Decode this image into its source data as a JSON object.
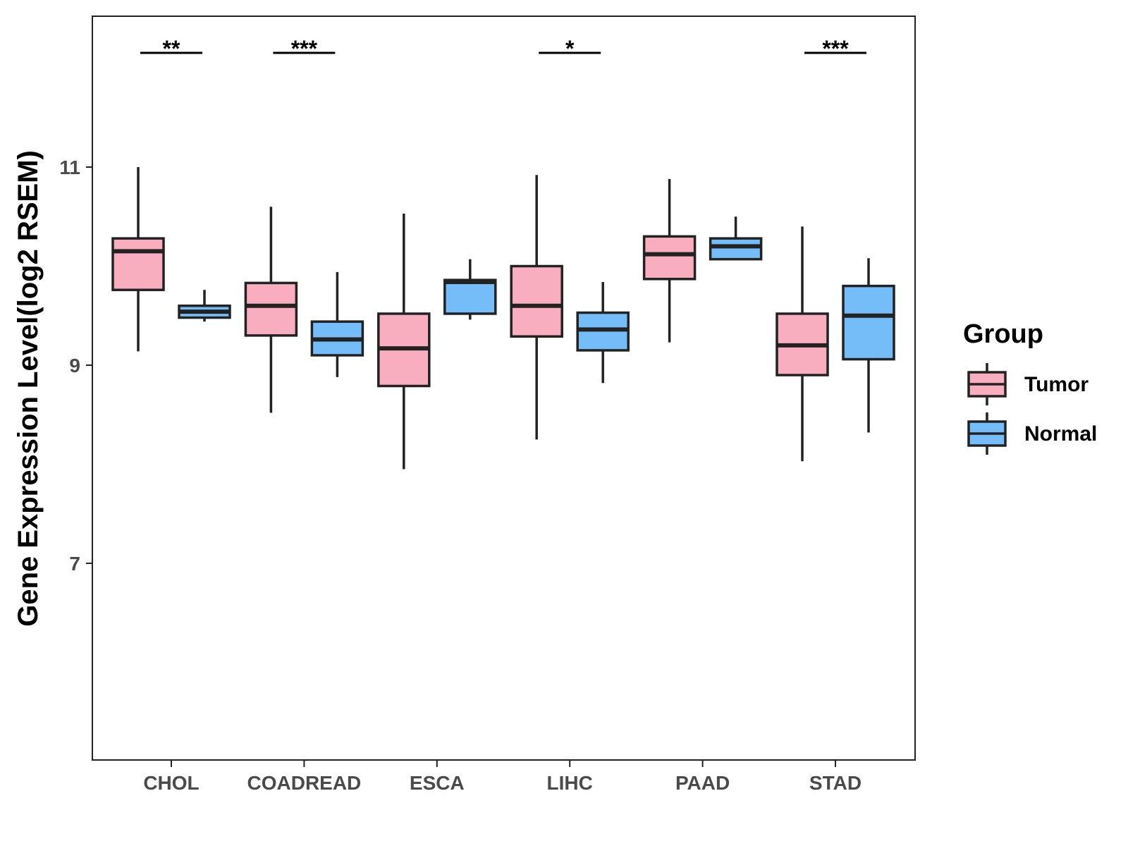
{
  "chart_data": {
    "type": "boxplot",
    "title": "",
    "xlabel": "",
    "ylabel": "Gene Expression Level(log2 RSEM)",
    "ylim": [
      5.1,
      12.6
    ],
    "yticks": [
      7,
      9,
      11
    ],
    "categories": [
      "CHOL",
      "COADREAD",
      "ESCA",
      "LIHC",
      "PAAD",
      "STAD"
    ],
    "legend": {
      "title": "Group",
      "position": "right",
      "entries": [
        "Tumor",
        "Normal"
      ]
    },
    "colors": {
      "Tumor": "#F9AEC0",
      "Normal": "#74BDF9",
      "outline": "#222222"
    },
    "series": [
      {
        "name": "Tumor",
        "boxes": [
          {
            "category": "CHOL",
            "min": 9.14,
            "q1": 9.76,
            "median": 10.15,
            "q3": 10.28,
            "max": 11.0
          },
          {
            "category": "COADREAD",
            "min": 8.52,
            "q1": 9.3,
            "median": 9.6,
            "q3": 9.83,
            "max": 10.6
          },
          {
            "category": "ESCA",
            "min": 7.95,
            "q1": 8.79,
            "median": 9.17,
            "q3": 9.52,
            "max": 10.53
          },
          {
            "category": "LIHC",
            "min": 8.25,
            "q1": 9.29,
            "median": 9.6,
            "q3": 10.0,
            "max": 10.92
          },
          {
            "category": "PAAD",
            "min": 9.23,
            "q1": 9.87,
            "median": 10.12,
            "q3": 10.3,
            "max": 10.88
          },
          {
            "category": "STAD",
            "min": 8.03,
            "q1": 8.9,
            "median": 9.2,
            "q3": 9.52,
            "max": 10.4
          }
        ]
      },
      {
        "name": "Normal",
        "boxes": [
          {
            "category": "CHOL",
            "min": 9.44,
            "q1": 9.48,
            "median": 9.54,
            "q3": 9.6,
            "max": 9.76
          },
          {
            "category": "COADREAD",
            "min": 8.88,
            "q1": 9.1,
            "median": 9.26,
            "q3": 9.44,
            "max": 9.94
          },
          {
            "category": "ESCA",
            "min": 9.46,
            "q1": 9.52,
            "median": 9.84,
            "q3": 9.86,
            "max": 10.07
          },
          {
            "category": "LIHC",
            "min": 8.82,
            "q1": 9.15,
            "median": 9.36,
            "q3": 9.53,
            "max": 9.84
          },
          {
            "category": "PAAD",
            "min": 10.07,
            "q1": 10.07,
            "median": 10.2,
            "q3": 10.28,
            "max": 10.5
          },
          {
            "category": "STAD",
            "min": 8.32,
            "q1": 9.06,
            "median": 9.5,
            "q3": 9.8,
            "max": 10.08
          }
        ]
      }
    ],
    "significance": [
      {
        "category": "CHOL",
        "label": "**"
      },
      {
        "category": "COADREAD",
        "label": "***"
      },
      {
        "category": "LIHC",
        "label": "*"
      },
      {
        "category": "STAD",
        "label": "***"
      }
    ]
  }
}
